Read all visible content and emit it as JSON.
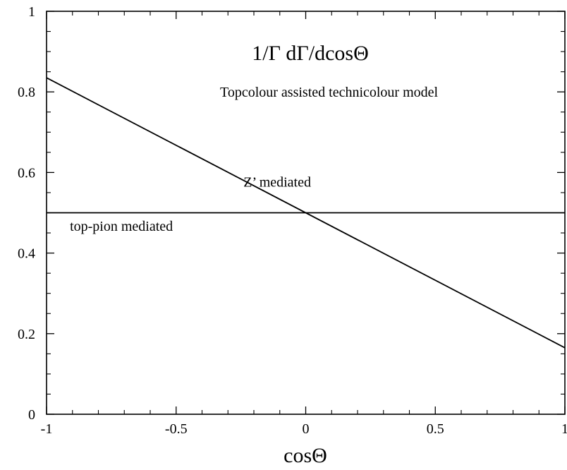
{
  "chart_data": {
    "type": "line",
    "title": "1/Γ dΓ/dcosΘ",
    "subtitle": "Topcolour assisted technicolour model",
    "xlabel": "cosΘ",
    "ylabel": "",
    "xlim": [
      -1,
      1
    ],
    "ylim": [
      0,
      1
    ],
    "x_ticks": [
      -1,
      -0.5,
      0,
      0.5,
      1
    ],
    "x_tick_labels": [
      "-1",
      "-0.5",
      "0",
      "0.5",
      "1"
    ],
    "y_ticks": [
      0,
      0.2,
      0.4,
      0.6,
      0.8,
      1
    ],
    "y_tick_labels": [
      "0",
      "0.2",
      "0.4",
      "0.6",
      "0.8",
      "1"
    ],
    "grid": false,
    "legend": "none",
    "series": [
      {
        "name": "Z’ mediated",
        "x": [
          -1,
          1
        ],
        "y": [
          0.835,
          0.165
        ]
      },
      {
        "name": "top-pion mediated",
        "x": [
          -1,
          1
        ],
        "y": [
          0.5,
          0.5
        ]
      }
    ],
    "annotations": [
      {
        "text": "Z’ mediated",
        "x": -0.24,
        "y": 0.565
      },
      {
        "text": "top-pion mediated",
        "x": -0.91,
        "y": 0.455
      }
    ]
  }
}
